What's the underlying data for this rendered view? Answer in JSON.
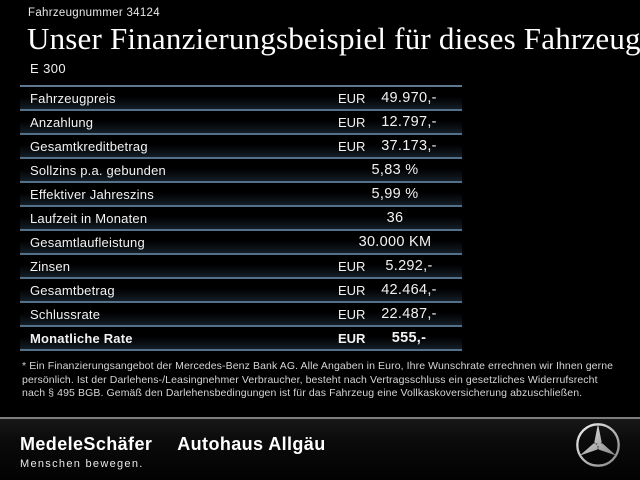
{
  "header": {
    "vehicle_number": "Fahrzeugnummer 34124",
    "title": "Unser Finanzierungsbeispiel für dieses Fahrzeug.*",
    "model": "E 300"
  },
  "financing_table": {
    "rows": [
      {
        "label": "Fahrzeugpreis",
        "currency": "EUR",
        "value": "49.970,-",
        "bold": false
      },
      {
        "label": "Anzahlung",
        "currency": "EUR",
        "value": "12.797,-",
        "bold": false
      },
      {
        "label": "Gesamtkreditbetrag",
        "currency": "EUR",
        "value": "37.173,-",
        "bold": false
      },
      {
        "label": "Sollzins p.a. gebunden",
        "currency": "",
        "value": "5,83 %",
        "bold": false
      },
      {
        "label": "Effektiver Jahreszins",
        "currency": "",
        "value": "5,99 %",
        "bold": false
      },
      {
        "label": "Laufzeit in Monaten",
        "currency": "",
        "value": "36",
        "bold": false
      },
      {
        "label": "Gesamtlaufleistung",
        "currency": "",
        "value": "30.000 KM",
        "bold": false
      },
      {
        "label": "Zinsen",
        "currency": "EUR",
        "value": "5.292,-",
        "bold": false
      },
      {
        "label": "Gesamtbetrag",
        "currency": "EUR",
        "value": "42.464,-",
        "bold": false
      },
      {
        "label": "Schlussrate",
        "currency": "EUR",
        "value": "22.487,-",
        "bold": false
      },
      {
        "label": "Monatliche Rate",
        "currency": "EUR",
        "value": "555,-",
        "bold": true
      }
    ]
  },
  "footnote": "* Ein Finanzierungsangebot der Mercedes-Benz Bank AG. Alle Angaben in Euro, Ihre Wunschrate errechnen wir Ihnen gerne persönlich. Ist der Darlehens-/Leasingnehmer Verbraucher, besteht nach Vertragsschluss ein gesetzliches Widerrufsrecht nach § 495 BGB. Gemäß den Darlehensbedingungen ist für das Fahrzeug eine Vollkaskoversicherung abzuschließen.",
  "footer": {
    "dealer_logo": "MedeleSchäfer",
    "dealer_tagline": "Menschen bewegen.",
    "dealer_secondary": "Autohaus Allgäu",
    "brand_icon": "mercedes-star-icon"
  },
  "colors": {
    "background": "#000000",
    "text": "#f2f2f2",
    "separator_line": "#54718c",
    "footer_divider": "#7d7d7d",
    "star_silver": "#c0c0c0"
  }
}
